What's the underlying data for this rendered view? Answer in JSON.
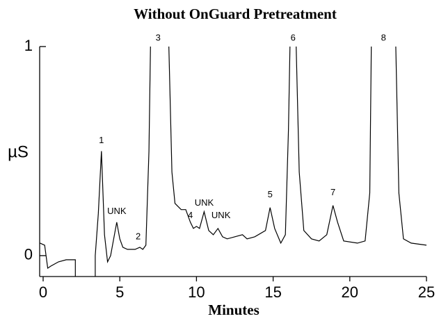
{
  "chart_data": {
    "type": "line",
    "title": "Without OnGuard Pretreatment",
    "x_label": "Minutes",
    "y_label": "µS",
    "color": "#000000",
    "x": [
      -0.2,
      0.1,
      0.3,
      0.5,
      1.0,
      1.5,
      2.1,
      2.1,
      2.8,
      3.4,
      3.4,
      3.6,
      3.8,
      4.0,
      4.2,
      4.4,
      4.6,
      4.8,
      5.0,
      5.2,
      5.5,
      6.0,
      6.3,
      6.5,
      6.7,
      6.9,
      7.0,
      7.5,
      8.2,
      8.4,
      8.6,
      9.0,
      9.3,
      9.6,
      9.8,
      10.0,
      10.2,
      10.5,
      10.8,
      11.1,
      11.4,
      11.7,
      12.0,
      12.5,
      13.0,
      13.3,
      13.8,
      14.5,
      14.8,
      15.1,
      15.5,
      15.8,
      16.0,
      16.1,
      16.3,
      16.5,
      16.7,
      17.0,
      17.5,
      18.0,
      18.5,
      18.9,
      19.2,
      19.6,
      20.5,
      21.0,
      21.3,
      21.4,
      22.2,
      23.0,
      23.2,
      23.5,
      24.0,
      25.0
    ],
    "values": [
      0.06,
      0.05,
      -0.06,
      -0.05,
      -0.03,
      -0.02,
      -0.02,
      -0.1,
      null,
      -0.1,
      0.0,
      0.2,
      0.5,
      0.1,
      -0.03,
      0.0,
      0.08,
      0.16,
      0.08,
      0.04,
      0.03,
      0.03,
      0.04,
      0.03,
      0.05,
      0.5,
      1.0,
      null,
      1.0,
      0.4,
      0.25,
      0.22,
      0.22,
      0.16,
      0.13,
      0.14,
      0.13,
      0.21,
      0.12,
      0.1,
      0.13,
      0.09,
      0.08,
      0.09,
      0.1,
      0.08,
      0.09,
      0.12,
      0.23,
      0.13,
      0.06,
      0.1,
      0.6,
      1.0,
      null,
      1.0,
      0.4,
      0.12,
      0.08,
      0.07,
      0.1,
      0.24,
      0.16,
      0.07,
      0.06,
      0.07,
      0.3,
      1.0,
      null,
      1.0,
      0.3,
      0.08,
      0.06,
      0.05
    ],
    "xlim": [
      0,
      25
    ],
    "xticks": [
      0,
      5,
      10,
      15,
      20,
      25
    ],
    "ylim": [
      -0.1,
      1
    ],
    "yticks": [
      0,
      1
    ],
    "annotations": [
      {
        "label": "1",
        "x": 3.8,
        "y": 0.55
      },
      {
        "label": "UNK",
        "x": 4.8,
        "y": 0.21
      },
      {
        "label": "2",
        "x": 6.2,
        "y": 0.09
      },
      {
        "label": "3",
        "x": 7.5,
        "y": 1.04
      },
      {
        "label": "4",
        "x": 9.6,
        "y": 0.19
      },
      {
        "label": "UNK",
        "x": 10.5,
        "y": 0.25
      },
      {
        "label": "UNK",
        "x": 11.6,
        "y": 0.19
      },
      {
        "label": "5",
        "x": 14.8,
        "y": 0.29
      },
      {
        "label": "6",
        "x": 16.3,
        "y": 1.04
      },
      {
        "label": "7",
        "x": 18.9,
        "y": 0.3
      },
      {
        "label": "8",
        "x": 22.2,
        "y": 1.04
      }
    ]
  }
}
